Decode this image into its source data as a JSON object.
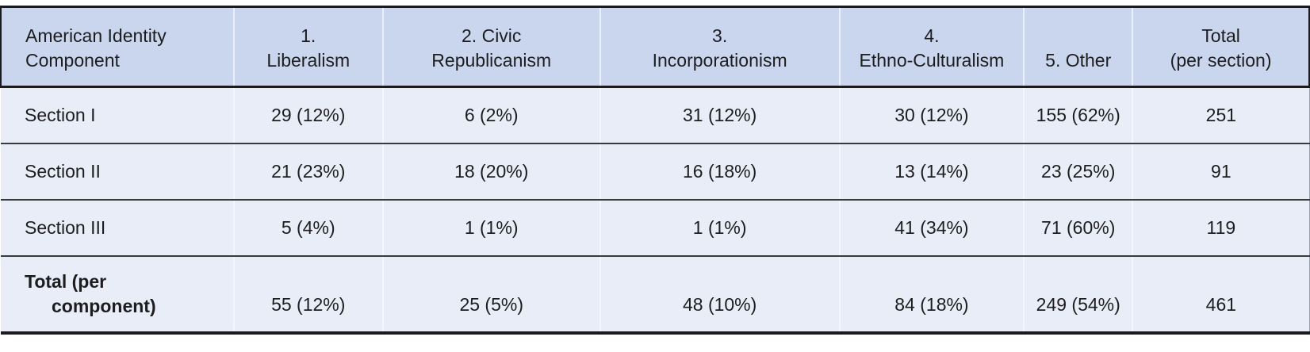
{
  "colors": {
    "header-bg": "#c9d6ee",
    "body-bg": "#e8edf7",
    "rule-dark": "#1b1b1e",
    "row-line": "#3a3a3e",
    "header-divider": "#e9f0fb",
    "body-divider": "#f3f6fc",
    "text": "#1d1d1f",
    "page-bg": "#ffffff"
  },
  "table": {
    "columns": [
      "American Identity\nComponent",
      "1.\nLiberalism",
      "2. Civic\nRepublicanism",
      "3.\nIncorporationism",
      "4.\nEthno-Culturalism",
      "5. Other",
      "Total\n(per section)"
    ],
    "rows": [
      {
        "label": "Section I",
        "values": [
          "29 (12%)",
          "6 (2%)",
          "31 (12%)",
          "30 (12%)",
          "155 (62%)"
        ],
        "total": "251"
      },
      {
        "label": "Section II",
        "values": [
          "21 (23%)",
          "18 (20%)",
          "16 (18%)",
          "13 (14%)",
          "23 (25%)"
        ],
        "total": "91"
      },
      {
        "label": "Section III",
        "values": [
          "5 (4%)",
          "1 (1%)",
          "1 (1%)",
          "41 (34%)",
          "71 (60%)"
        ],
        "total": "119"
      },
      {
        "label": "Total (per\ncomponent)",
        "values": [
          "55 (12%)",
          "25 (5%)",
          "48 (10%)",
          "84 (18%)",
          "249 (54%)"
        ],
        "total": "461"
      }
    ]
  },
  "chart_data": {
    "type": "table",
    "row_header": "American Identity Component",
    "components": [
      "1. Liberalism",
      "2. Civic Republicanism",
      "3. Incorporationism",
      "4. Ethno-Culturalism",
      "5. Other"
    ],
    "sections": [
      "Section I",
      "Section II",
      "Section III"
    ],
    "counts": [
      [
        29,
        6,
        31,
        30,
        155
      ],
      [
        21,
        18,
        16,
        13,
        23
      ],
      [
        5,
        1,
        1,
        41,
        71
      ]
    ],
    "percents": [
      [
        12,
        2,
        12,
        12,
        62
      ],
      [
        23,
        20,
        18,
        14,
        25
      ],
      [
        4,
        1,
        1,
        34,
        60
      ]
    ],
    "section_totals": [
      251,
      91,
      119
    ],
    "component_totals": [
      55,
      25,
      48,
      84,
      249
    ],
    "component_total_percents": [
      12,
      5,
      10,
      18,
      54
    ],
    "grand_total": 461
  }
}
